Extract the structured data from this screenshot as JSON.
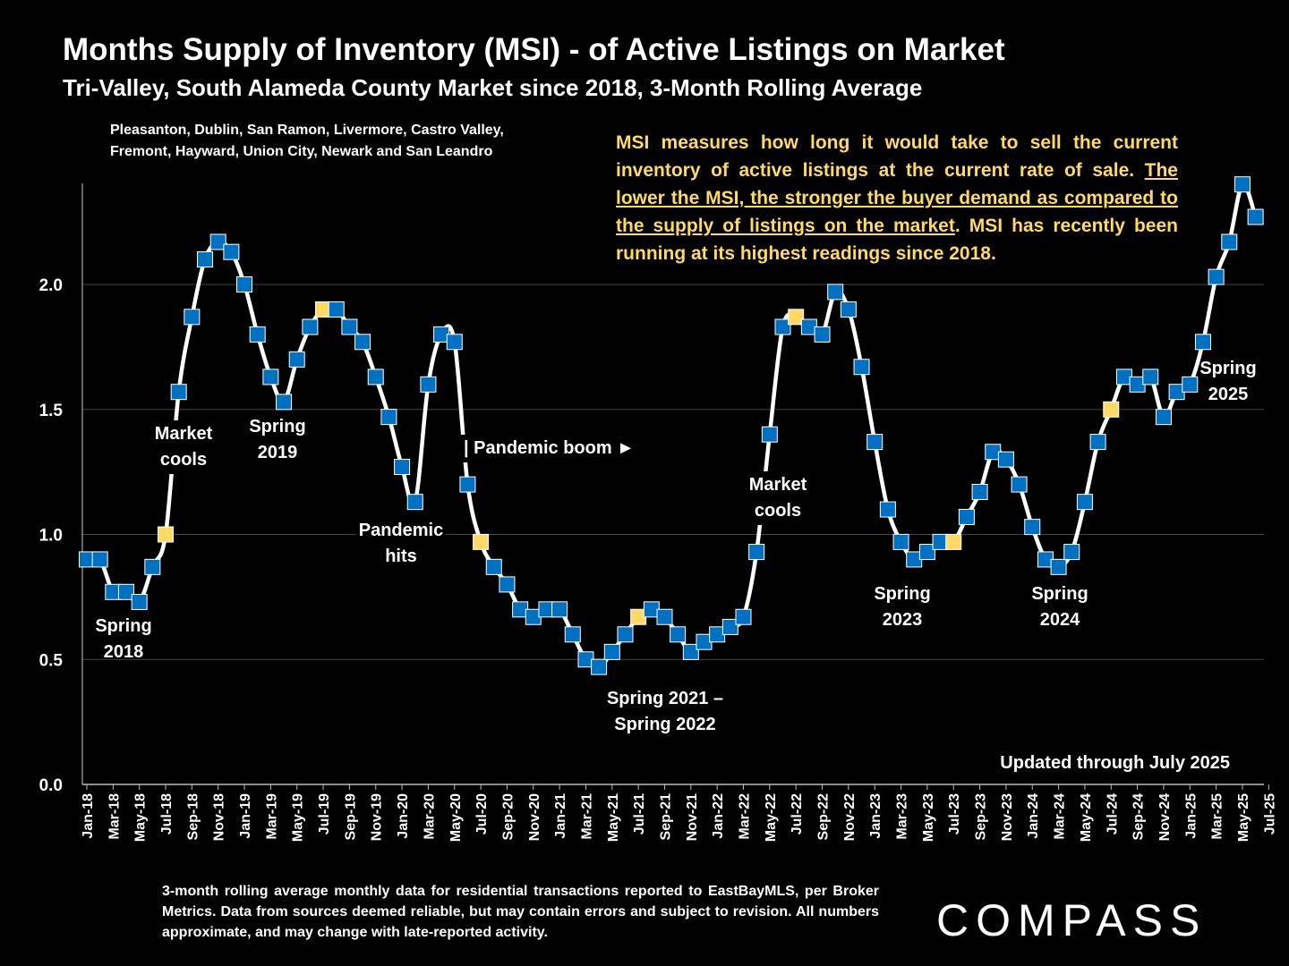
{
  "header": {
    "title": "Months Supply of Inventory (MSI) - of Active Listings on Market",
    "subtitle": "Tri-Valley, South Alameda County Market since 2018, 3-Month Rolling Average"
  },
  "cities": {
    "line1": "Pleasanton, Dublin, San Ramon, Livermore, Castro Valley,",
    "line2": "Fremont, Hayward, Union City, Newark and San Leandro"
  },
  "info": {
    "part1": "MSI measures how long it would take to sell the current inventory of active listings at the current rate of sale. ",
    "underlined": "The lower the MSI, the stronger the buyer demand as compared to the supply of listings on the market",
    "part2": ". MSI has recently been running at its highest readings since 2018."
  },
  "footnote": "3-month rolling average monthly data for residential transactions reported to EastBayMLS, per Broker Metrics. Data from sources deemed reliable, but may contain errors and subject to revision. All numbers approximate, and may change with late-reported activity.",
  "logo": "COMPASS",
  "colors": {
    "background": "#000000",
    "line": "#ffffff",
    "marker": "#0070c0",
    "highlight": "#ffd966",
    "grid": "#444444"
  },
  "chart_data": {
    "type": "line",
    "ylim": [
      0,
      2.4
    ],
    "yticks": [
      "0.0",
      "0.5",
      "1.0",
      "1.5",
      "2.0"
    ],
    "ytick_values": [
      0,
      0.5,
      1.0,
      1.5,
      2.0
    ],
    "grid": true,
    "x_tick_labels": [
      "Jan-18",
      "Mar-18",
      "May-18",
      "Jul-18",
      "Sep-18",
      "Nov-18",
      "Jan-19",
      "Mar-19",
      "May-19",
      "Jul-19",
      "Sep-19",
      "Nov-19",
      "Jan-20",
      "Mar-20",
      "May-20",
      "Jul-20",
      "Sep-20",
      "Nov-20",
      "Jan-21",
      "Mar-21",
      "May-21",
      "Jul-21",
      "Sep-21",
      "Nov-21",
      "Jan-22",
      "Mar-22",
      "May-22",
      "Jul-22",
      "Sep-22",
      "Nov-22",
      "Jan-23",
      "Mar-23",
      "May-23",
      "Jul-23",
      "Sep-23",
      "Nov-23",
      "Jan-24",
      "Mar-24",
      "May-24",
      "Jul-24",
      "Sep-24",
      "Nov-24",
      "Jan-25",
      "Mar-25",
      "May-25",
      "Jul-25"
    ],
    "series": [
      {
        "values": [
          0.9,
          0.9,
          0.77,
          0.77,
          0.73,
          0.87,
          1.0,
          1.57,
          1.87,
          2.1,
          2.17,
          2.13,
          2.0,
          1.8,
          1.63,
          1.53,
          1.7,
          1.83,
          1.9,
          1.9,
          1.83,
          1.77,
          1.63,
          1.47,
          1.27,
          1.13,
          1.6,
          1.8,
          1.77,
          1.2,
          0.97,
          0.87,
          0.8,
          0.7,
          0.67,
          0.7,
          0.7,
          0.6,
          0.5,
          0.47,
          0.53,
          0.6,
          0.67,
          0.7,
          0.67,
          0.6,
          0.53,
          0.57,
          0.6,
          0.63,
          0.67,
          0.93,
          1.4,
          1.83,
          1.87,
          1.83,
          1.8,
          1.97,
          1.9,
          1.67,
          1.37,
          1.1,
          0.97,
          0.9,
          0.93,
          0.97,
          0.97,
          1.07,
          1.17,
          1.33,
          1.3,
          1.2,
          1.03,
          0.9,
          0.87,
          0.93,
          1.13,
          1.37,
          1.5,
          1.63,
          1.6,
          1.63,
          1.47,
          1.57,
          1.6,
          1.77,
          2.03,
          2.17,
          2.4,
          2.27
        ],
        "highlight_months": [
          "Jul-18",
          "Jul-19",
          "Jul-20",
          "Jul-21",
          "Jul-22",
          "Jul-23",
          "Jul-24",
          "Jul-25"
        ]
      }
    ],
    "annotations": [
      {
        "lines": [
          "Spring",
          "2018"
        ]
      },
      {
        "lines": [
          "Market",
          "cools"
        ]
      },
      {
        "lines": [
          "Spring",
          "2019"
        ]
      },
      {
        "lines": [
          "Pandemic",
          "hits"
        ]
      },
      {
        "lines": [
          "| Pandemic boom ►"
        ]
      },
      {
        "lines": [
          "Spring 2021 –",
          "Spring 2022"
        ]
      },
      {
        "lines": [
          "Market",
          "cools"
        ]
      },
      {
        "lines": [
          "Spring",
          "2023"
        ]
      },
      {
        "lines": [
          "Spring",
          "2024"
        ]
      },
      {
        "lines": [
          "Spring",
          "2025"
        ]
      },
      {
        "lines": [
          "Updated through July 2025"
        ]
      }
    ]
  }
}
